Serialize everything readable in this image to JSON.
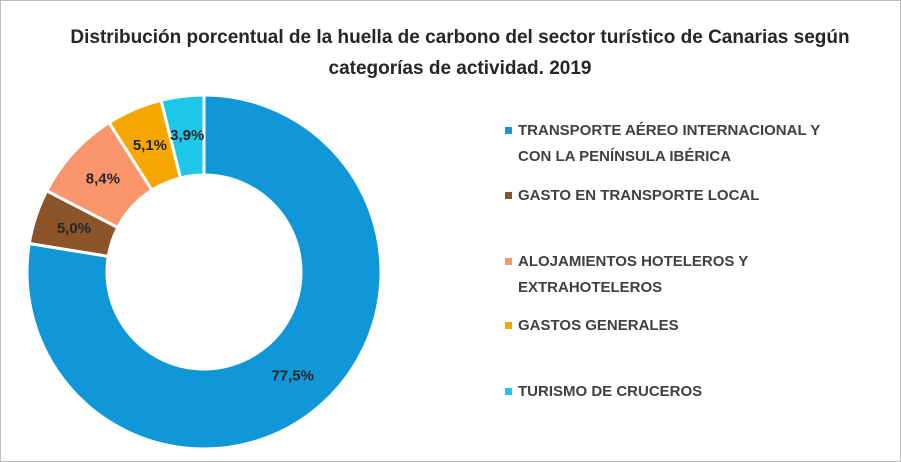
{
  "chart_data": {
    "type": "donut",
    "title": "Distribución porcentual de la huella de carbono del sector turístico de Canarias según categorías de actividad. 2019",
    "categories": [
      "TRANSPORTE AÉREO INTERNACIONAL Y CON LA PENÍNSULA IBÉRICA",
      "GASTO EN TRANSPORTE LOCAL",
      "ALOJAMIENTOS HOTELEROS Y EXTRAHOTELEROS",
      "GASTOS GENERALES",
      "TURISMO DE CRUCEROS"
    ],
    "values": [
      77.5,
      5.0,
      8.4,
      5.1,
      3.9
    ],
    "value_labels": [
      "77,5%",
      "5,0%",
      "8,4%",
      "5,1%",
      "3,9%"
    ],
    "colors": [
      "#0f97d7",
      "#8b5429",
      "#f9966b",
      "#f5a700",
      "#1ec6e8"
    ],
    "legend": "right"
  }
}
